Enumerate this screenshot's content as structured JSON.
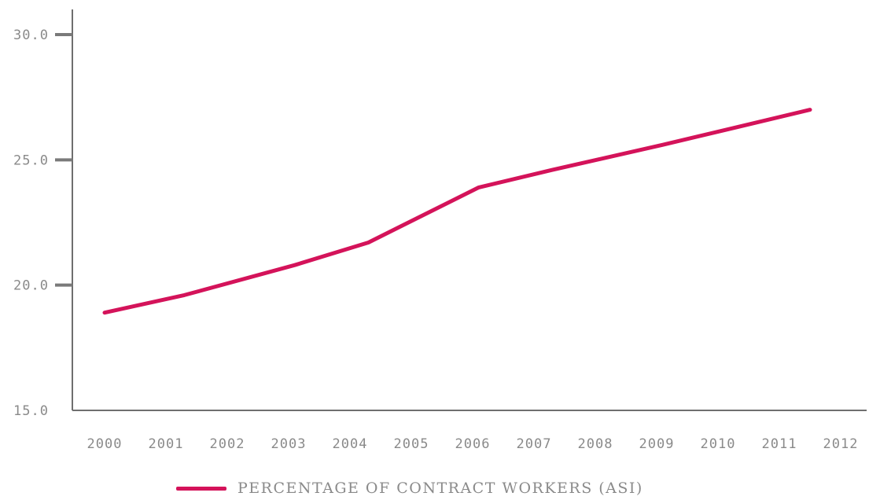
{
  "chart_data": {
    "type": "line",
    "x": [
      "2000",
      "2001",
      "2002",
      "2003",
      "2004",
      "2005",
      "2006",
      "2007",
      "2008",
      "2009",
      "2010",
      "2011",
      "2012"
    ],
    "y_ticks": [
      "15.0",
      "20.0",
      "25.0",
      "30.0"
    ],
    "ylim": [
      15,
      30
    ],
    "grid": false,
    "legend_position": "bottom",
    "series": [
      {
        "name": "PERCENTAGE OF CONTRACT WORKERS (ASI)",
        "color": "#d4135a",
        "points": [
          {
            "x": 2000,
            "y": 18.9
          },
          {
            "x": 2001.3,
            "y": 19.6
          },
          {
            "x": 2003.1,
            "y": 20.8
          },
          {
            "x": 2004.3,
            "y": 21.7
          },
          {
            "x": 2006.1,
            "y": 23.9
          },
          {
            "x": 2007.3,
            "y": 24.6
          },
          {
            "x": 2009.1,
            "y": 25.6
          },
          {
            "x": 2010.3,
            "y": 26.3
          },
          {
            "x": 2011.5,
            "y": 27.0
          }
        ]
      }
    ]
  }
}
